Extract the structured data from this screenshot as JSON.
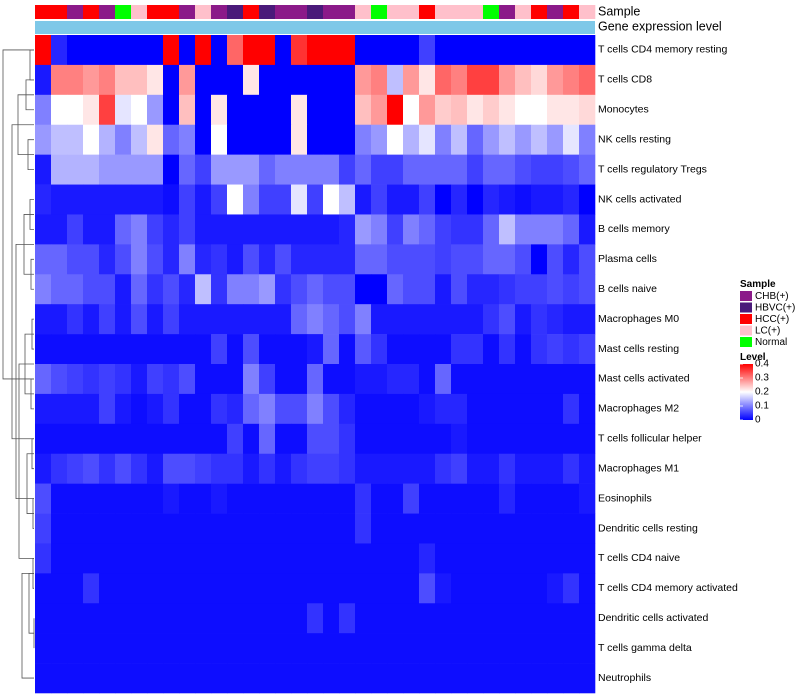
{
  "chart_data": {
    "type": "heatmap",
    "title": "",
    "annotation_tracks": [
      {
        "name": "Sample",
        "label": "Sample"
      },
      {
        "name": "Gene expression level",
        "label": "Gene expression level"
      }
    ],
    "sample_groups": [
      "HCC(+)",
      "HCC(+)",
      "CHB(+)",
      "HCC(+)",
      "CHB(+)",
      "Normal",
      "LC(+)",
      "HCC(+)",
      "HCC(+)",
      "CHB(+)",
      "LC(+)",
      "CHB(+)",
      "HBVC(+)",
      "HCC(+)",
      "HBVC(+)",
      "CHB(+)",
      "CHB(+)",
      "HBVC(+)",
      "CHB(+)",
      "CHB(+)",
      "LC(+)",
      "Normal",
      "LC(+)",
      "LC(+)",
      "HCC(+)",
      "LC(+)",
      "LC(+)",
      "LC(+)",
      "Normal",
      "CHB(+)",
      "LC(+)",
      "HCC(+)",
      "CHB(+)",
      "HCC(+)",
      "LC(+)"
    ],
    "rows": [
      "T cells CD4 memory resting",
      "T cells CD8",
      "Monocytes",
      "NK cells resting",
      "T cells regulatory  Tregs",
      "NK cells activated",
      "B cells memory",
      "Plasma cells",
      "B cells naive",
      "Macrophages M0",
      "Mast cells resting",
      "Mast cells activated",
      "Macrophages M2",
      "T cells follicular helper",
      "Macrophages M1",
      "Eosinophils",
      "Dendritic cells resting",
      "T cells CD4 naive",
      "T cells CD4 memory activated",
      "Dendritic cells activated",
      "T cells gamma delta",
      "Neutrophils"
    ],
    "values": [
      [
        0.4,
        0.03,
        0,
        0,
        0,
        0,
        0,
        0,
        0.4,
        0,
        0.4,
        0,
        0.32,
        0.4,
        0.4,
        0,
        0.36,
        0.4,
        0.4,
        0.4,
        0,
        0,
        0,
        0,
        0.05,
        0,
        0,
        0,
        0,
        0,
        0,
        0,
        0,
        0,
        0
      ],
      [
        0.02,
        0.3,
        0.3,
        0.28,
        0.3,
        0.25,
        0.25,
        0.22,
        0,
        0.28,
        0,
        0,
        0,
        0.22,
        0,
        0,
        0,
        0,
        0,
        0,
        0.28,
        0.3,
        0.15,
        0.28,
        0.22,
        0.32,
        0.3,
        0.35,
        0.35,
        0.28,
        0.25,
        0.23,
        0.28,
        0.3,
        0.32
      ],
      [
        0.1,
        0.2,
        0.2,
        0.22,
        0.35,
        0.18,
        0.2,
        0.12,
        0,
        0.25,
        0,
        0.22,
        0,
        0,
        0,
        0,
        0.22,
        0,
        0,
        0,
        0.25,
        0.28,
        0.4,
        0.2,
        0.28,
        0.24,
        0.25,
        0.22,
        0.24,
        0.22,
        0.2,
        0.2,
        0.22,
        0.22,
        0.23
      ],
      [
        0.12,
        0.15,
        0.15,
        0.2,
        0.14,
        0.1,
        0.15,
        0.22,
        0.08,
        0.1,
        0,
        0.2,
        0,
        0,
        0,
        0,
        0.22,
        0,
        0,
        0,
        0.1,
        0.12,
        0.2,
        0.14,
        0.18,
        0.1,
        0.15,
        0.08,
        0.12,
        0.15,
        0.12,
        0.15,
        0.12,
        0.18,
        0.1
      ],
      [
        0.02,
        0.14,
        0.14,
        0.14,
        0.12,
        0.12,
        0.12,
        0.12,
        0,
        0.08,
        0.05,
        0.12,
        0.12,
        0.12,
        0.08,
        0.1,
        0.1,
        0.1,
        0.1,
        0.05,
        0.08,
        0.05,
        0.05,
        0.08,
        0.08,
        0.08,
        0.08,
        0.05,
        0.08,
        0.08,
        0.06,
        0.05,
        0.05,
        0.06,
        0.08
      ],
      [
        0.03,
        0.02,
        0.02,
        0.02,
        0.02,
        0.02,
        0.02,
        0.02,
        0.01,
        0.05,
        0.02,
        0.05,
        0.2,
        0.1,
        0.05,
        0.05,
        0.18,
        0.05,
        0.2,
        0.15,
        0.02,
        0.05,
        0.02,
        0.02,
        0.05,
        0,
        0.03,
        0,
        0.03,
        0.02,
        0.01,
        0.02,
        0.02,
        0.03,
        0
      ],
      [
        0.02,
        0.02,
        0.05,
        0.02,
        0.02,
        0.08,
        0.1,
        0.05,
        0.03,
        0.05,
        0.02,
        0.02,
        0.02,
        0.02,
        0.02,
        0.02,
        0.02,
        0.02,
        0.02,
        0.03,
        0.12,
        0.1,
        0.05,
        0.1,
        0.08,
        0.05,
        0.04,
        0.04,
        0.08,
        0.15,
        0.1,
        0.1,
        0.1,
        0.08,
        0.02
      ],
      [
        0.08,
        0.08,
        0.06,
        0.06,
        0.03,
        0.06,
        0.1,
        0.06,
        0.03,
        0.1,
        0.03,
        0.04,
        0.02,
        0.06,
        0.03,
        0.06,
        0.03,
        0.03,
        0.03,
        0.03,
        0.08,
        0.08,
        0.06,
        0.06,
        0.06,
        0.05,
        0.06,
        0.06,
        0.08,
        0.08,
        0.06,
        0,
        0.06,
        0.03,
        0.06
      ],
      [
        0.1,
        0.08,
        0.08,
        0.06,
        0.06,
        0.02,
        0.08,
        0.04,
        0.06,
        0.03,
        0.15,
        0.04,
        0.1,
        0.1,
        0.12,
        0.04,
        0.06,
        0.08,
        0.06,
        0.06,
        0,
        0,
        0.08,
        0.06,
        0.06,
        0.02,
        0.06,
        0.03,
        0.03,
        0.04,
        0.05,
        0.05,
        0.06,
        0.05,
        0.06
      ],
      [
        0.02,
        0.02,
        0.04,
        0.02,
        0.05,
        0.02,
        0.06,
        0.02,
        0.05,
        0.02,
        0.02,
        0.02,
        0.02,
        0.02,
        0.02,
        0.02,
        0.08,
        0.1,
        0.08,
        0.06,
        0.1,
        0.02,
        0.02,
        0.02,
        0.02,
        0.02,
        0.02,
        0.02,
        0.04,
        0.06,
        0.02,
        0.04,
        0.03,
        0.02,
        0.02
      ],
      [
        0.01,
        0.01,
        0.01,
        0.01,
        0.01,
        0.01,
        0.01,
        0.01,
        0.01,
        0.01,
        0.01,
        0.05,
        0.01,
        0.06,
        0.01,
        0.01,
        0.01,
        0.02,
        0.08,
        0.01,
        0.07,
        0.04,
        0.01,
        0.01,
        0.01,
        0.01,
        0.04,
        0.04,
        0.01,
        0.04,
        0.01,
        0.04,
        0.05,
        0.04,
        0.05
      ],
      [
        0.08,
        0.06,
        0.05,
        0.04,
        0.05,
        0.04,
        0.02,
        0.05,
        0.04,
        0.06,
        0.01,
        0.01,
        0.01,
        0.1,
        0.05,
        0.01,
        0.01,
        0.08,
        0.01,
        0.01,
        0.02,
        0.02,
        0.03,
        0.03,
        0.01,
        0.08,
        0.01,
        0.01,
        0.01,
        0.01,
        0.01,
        0.01,
        0.01,
        0.01,
        0.01
      ],
      [
        0.02,
        0.02,
        0.02,
        0.02,
        0.05,
        0.02,
        0.01,
        0.02,
        0.04,
        0.01,
        0.01,
        0.04,
        0.03,
        0.08,
        0.1,
        0.06,
        0.06,
        0.1,
        0.06,
        0.03,
        0.01,
        0.01,
        0.01,
        0.01,
        0.02,
        0.03,
        0.03,
        0.01,
        0.01,
        0.01,
        0.01,
        0.01,
        0.01,
        0.04,
        0.01
      ],
      [
        0.01,
        0.01,
        0.01,
        0.01,
        0.01,
        0.01,
        0.01,
        0.01,
        0.01,
        0.01,
        0.01,
        0.01,
        0.05,
        0.01,
        0.08,
        0.01,
        0.01,
        0.06,
        0.06,
        0.04,
        0.01,
        0.01,
        0.01,
        0.01,
        0.01,
        0.01,
        0.02,
        0.01,
        0.01,
        0.01,
        0.01,
        0.01,
        0.01,
        0.01,
        0.01
      ],
      [
        0.02,
        0.04,
        0.05,
        0.06,
        0.04,
        0.06,
        0.04,
        0.02,
        0.06,
        0.06,
        0.05,
        0.04,
        0.04,
        0.02,
        0.04,
        0.02,
        0.04,
        0.05,
        0.05,
        0.04,
        0.02,
        0.02,
        0.02,
        0.02,
        0.02,
        0.04,
        0.05,
        0.02,
        0.02,
        0.04,
        0.02,
        0.02,
        0.02,
        0.04,
        0.02
      ],
      [
        0.06,
        0.01,
        0.01,
        0.01,
        0.01,
        0.01,
        0.01,
        0.01,
        0.02,
        0.01,
        0.01,
        0.02,
        0.01,
        0.01,
        0.01,
        0.01,
        0.01,
        0.01,
        0.01,
        0.01,
        0.04,
        0.01,
        0.01,
        0.05,
        0.01,
        0.01,
        0.01,
        0.01,
        0.01,
        0.03,
        0.01,
        0.01,
        0.01,
        0.01,
        0.02
      ],
      [
        0.05,
        0.01,
        0.01,
        0.01,
        0.01,
        0.01,
        0.01,
        0.01,
        0.01,
        0.01,
        0.01,
        0.01,
        0.01,
        0.01,
        0.01,
        0.01,
        0.01,
        0.01,
        0.01,
        0.01,
        0.04,
        0.01,
        0.01,
        0.01,
        0.01,
        0.01,
        0.01,
        0.01,
        0.01,
        0.01,
        0.01,
        0.01,
        0.01,
        0.01,
        0.01
      ],
      [
        0.04,
        0.01,
        0.01,
        0.01,
        0.01,
        0.01,
        0.01,
        0.01,
        0.01,
        0.01,
        0.01,
        0.01,
        0.01,
        0.01,
        0.01,
        0.01,
        0.01,
        0.01,
        0.01,
        0.01,
        0.01,
        0.01,
        0.01,
        0.01,
        0.03,
        0.01,
        0.01,
        0.01,
        0.01,
        0.01,
        0.01,
        0.01,
        0.01,
        0.01,
        0.01
      ],
      [
        0.01,
        0.01,
        0.01,
        0.04,
        0.01,
        0.01,
        0.01,
        0.01,
        0.01,
        0.01,
        0.01,
        0.01,
        0.01,
        0.01,
        0.01,
        0.01,
        0.01,
        0.01,
        0.01,
        0.01,
        0.01,
        0.01,
        0.01,
        0.01,
        0.06,
        0.02,
        0.01,
        0.01,
        0.01,
        0.01,
        0.01,
        0.01,
        0.02,
        0.04,
        0.01
      ],
      [
        0.01,
        0.01,
        0.01,
        0.01,
        0.01,
        0.01,
        0.01,
        0.01,
        0.01,
        0.01,
        0.01,
        0.01,
        0.01,
        0.01,
        0.01,
        0.01,
        0.01,
        0.04,
        0.01,
        0.04,
        0.01,
        0.01,
        0.01,
        0.01,
        0.01,
        0.01,
        0.01,
        0.01,
        0.01,
        0.01,
        0.01,
        0.01,
        0.01,
        0.01,
        0.01
      ],
      [
        0.01,
        0.01,
        0.01,
        0.01,
        0.01,
        0.01,
        0.01,
        0.01,
        0.01,
        0.01,
        0.01,
        0.01,
        0.01,
        0.01,
        0.01,
        0.01,
        0.01,
        0.01,
        0.01,
        0.01,
        0.01,
        0.01,
        0.01,
        0.01,
        0.01,
        0.01,
        0.01,
        0.01,
        0.01,
        0.01,
        0.01,
        0.01,
        0.01,
        0.01,
        0.01
      ],
      [
        0.01,
        0.01,
        0.01,
        0.01,
        0.01,
        0.01,
        0.01,
        0.01,
        0.01,
        0.01,
        0.01,
        0.01,
        0.01,
        0.01,
        0.01,
        0.01,
        0.01,
        0.01,
        0.01,
        0.01,
        0.01,
        0.01,
        0.01,
        0.01,
        0.01,
        0.01,
        0.01,
        0.01,
        0.01,
        0.01,
        0.01,
        0.01,
        0.01,
        0.01,
        0.01
      ]
    ],
    "value_range": [
      0,
      0.4
    ],
    "legend_sample": {
      "title": "Sample",
      "entries": [
        {
          "label": "CHB(+)",
          "color": "#8b1a89"
        },
        {
          "label": "HBVC(+)",
          "color": "#4a1a7a"
        },
        {
          "label": "HCC(+)",
          "color": "#ff0000"
        },
        {
          "label": "LC(+)",
          "color": "#ffc0cb"
        },
        {
          "label": "Normal",
          "color": "#00ff00"
        }
      ]
    },
    "legend_level": {
      "title": "Level",
      "ticks": [
        "0.4",
        "0.3",
        "0.2",
        "0.1",
        "0"
      ],
      "tick_values": [
        0.4,
        0.3,
        0.2,
        0.1,
        0
      ]
    },
    "colors": {
      "low": "#0000ff",
      "mid": "#ffffff",
      "high": "#ff0000",
      "gene_expression_bar": "#7ec8e8"
    }
  }
}
